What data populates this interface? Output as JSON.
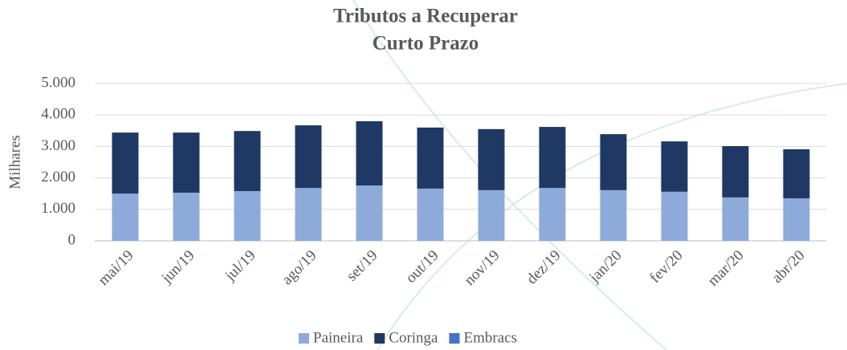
{
  "chart_data": {
    "type": "stacked-bar",
    "title": "Tributos a Recuperar",
    "subtitle": "Curto Prazo",
    "y_label": "Milhares",
    "categories": [
      "mai/19",
      "jun/19",
      "jul/19",
      "ago/19",
      "set/19",
      "out/19",
      "nov/19",
      "dez/19",
      "jan/20",
      "fev/20",
      "mar/20",
      "abr/20"
    ],
    "series": [
      {
        "name": "Paineira",
        "color": "#8eaadb",
        "values": [
          1500,
          1530,
          1580,
          1680,
          1760,
          1660,
          1610,
          1680,
          1610,
          1560,
          1380,
          1350
        ]
      },
      {
        "name": "Coringa",
        "color": "#1f3864",
        "values": [
          1940,
          1910,
          1910,
          1990,
          2040,
          1940,
          1940,
          1940,
          1780,
          1600,
          1630,
          1560
        ]
      },
      {
        "name": "Embracs",
        "color": "#4472c4",
        "values": [
          0,
          0,
          0,
          0,
          0,
          0,
          0,
          0,
          0,
          0,
          0,
          0
        ]
      }
    ],
    "ylim": [
      0,
      5000
    ],
    "yticks": [
      0,
      {
        "value": 1000,
        "label": "1.000"
      },
      {
        "value": 2000,
        "label": "2.000"
      },
      {
        "value": 3000,
        "label": "3.000"
      },
      {
        "value": 4000,
        "label": "4.000"
      },
      {
        "value": 5000,
        "label": "5.000"
      }
    ],
    "grid": true,
    "legend": "bottom"
  }
}
